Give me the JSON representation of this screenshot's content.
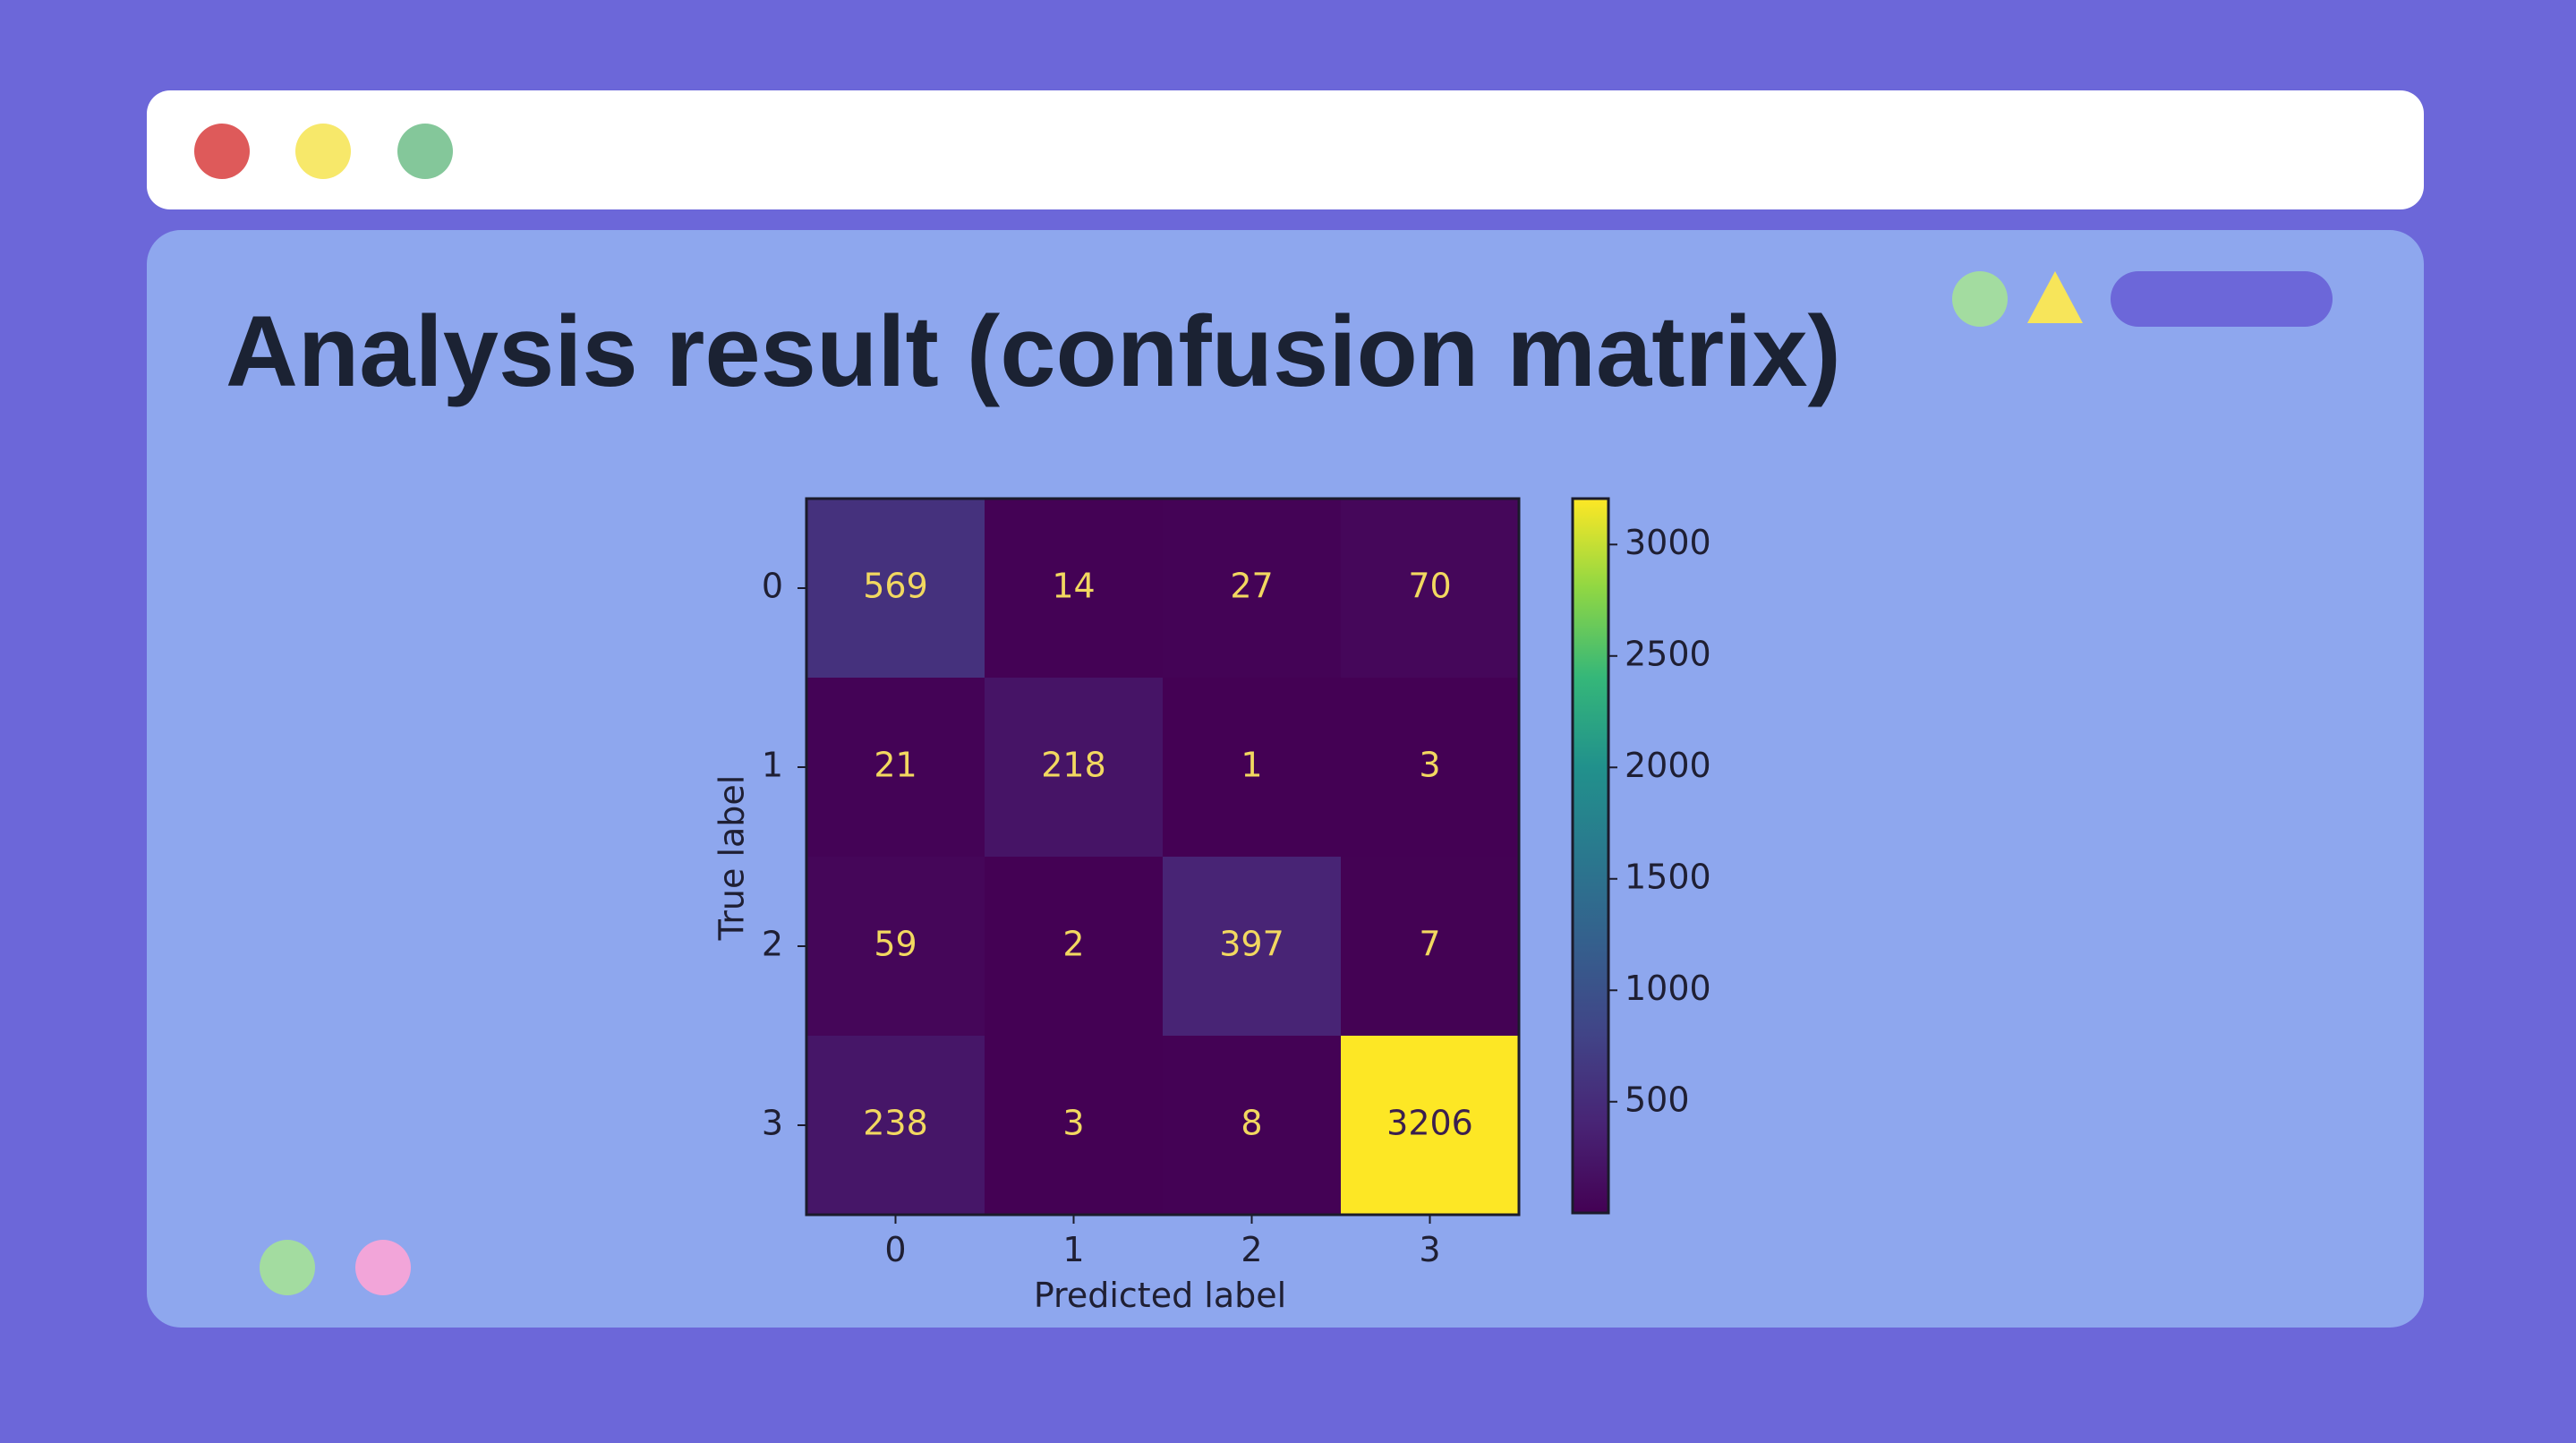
{
  "window": {
    "controls": [
      {
        "name": "close",
        "color": "#de5a5a"
      },
      {
        "name": "minimize",
        "color": "#f7e86a"
      },
      {
        "name": "maximize",
        "color": "#84c79a"
      }
    ]
  },
  "slide": {
    "title": "Analysis result (confusion matrix)",
    "decor": {
      "green_dot": "#a3dca0",
      "triangle": "#f7e55a",
      "pill": "#6c67d9",
      "bottom_dots": [
        "#a3dca0",
        "#f2a5d9"
      ]
    }
  },
  "chart_data": {
    "type": "heatmap",
    "title": "",
    "xlabel": "Predicted label",
    "ylabel": "True label",
    "x_categories": [
      "0",
      "1",
      "2",
      "3"
    ],
    "y_categories": [
      "0",
      "1",
      "2",
      "3"
    ],
    "matrix": [
      [
        569,
        14,
        27,
        70
      ],
      [
        21,
        218,
        1,
        3
      ],
      [
        59,
        2,
        397,
        7
      ],
      [
        238,
        3,
        8,
        3206
      ]
    ],
    "colormap": "viridis",
    "colorbar": {
      "range": [
        1,
        3206
      ],
      "ticks": [
        500,
        1000,
        1500,
        2000,
        2500,
        3000
      ]
    },
    "grid": false
  }
}
